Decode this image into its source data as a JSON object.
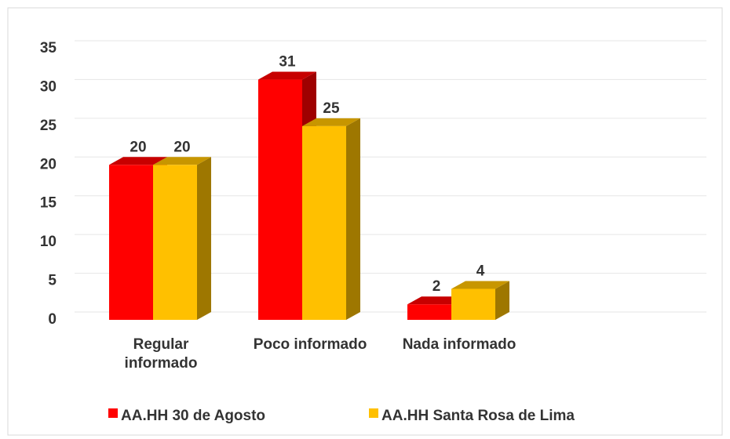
{
  "chart_data": {
    "type": "bar3d",
    "categories": [
      "Regular informado",
      "Poco informado",
      "Nada informado"
    ],
    "series": [
      {
        "name": "AA.HH 30 de Agosto",
        "color": "#ff0000",
        "values": [
          20,
          31,
          2
        ]
      },
      {
        "name": "AA.HH Santa Rosa de Lima",
        "color": "#ffc000",
        "values": [
          20,
          25,
          4
        ]
      }
    ],
    "ylim": [
      0,
      35
    ],
    "yticks": [
      0,
      5,
      10,
      15,
      20,
      25,
      30,
      35
    ],
    "grid": true,
    "legend": "bottom"
  }
}
